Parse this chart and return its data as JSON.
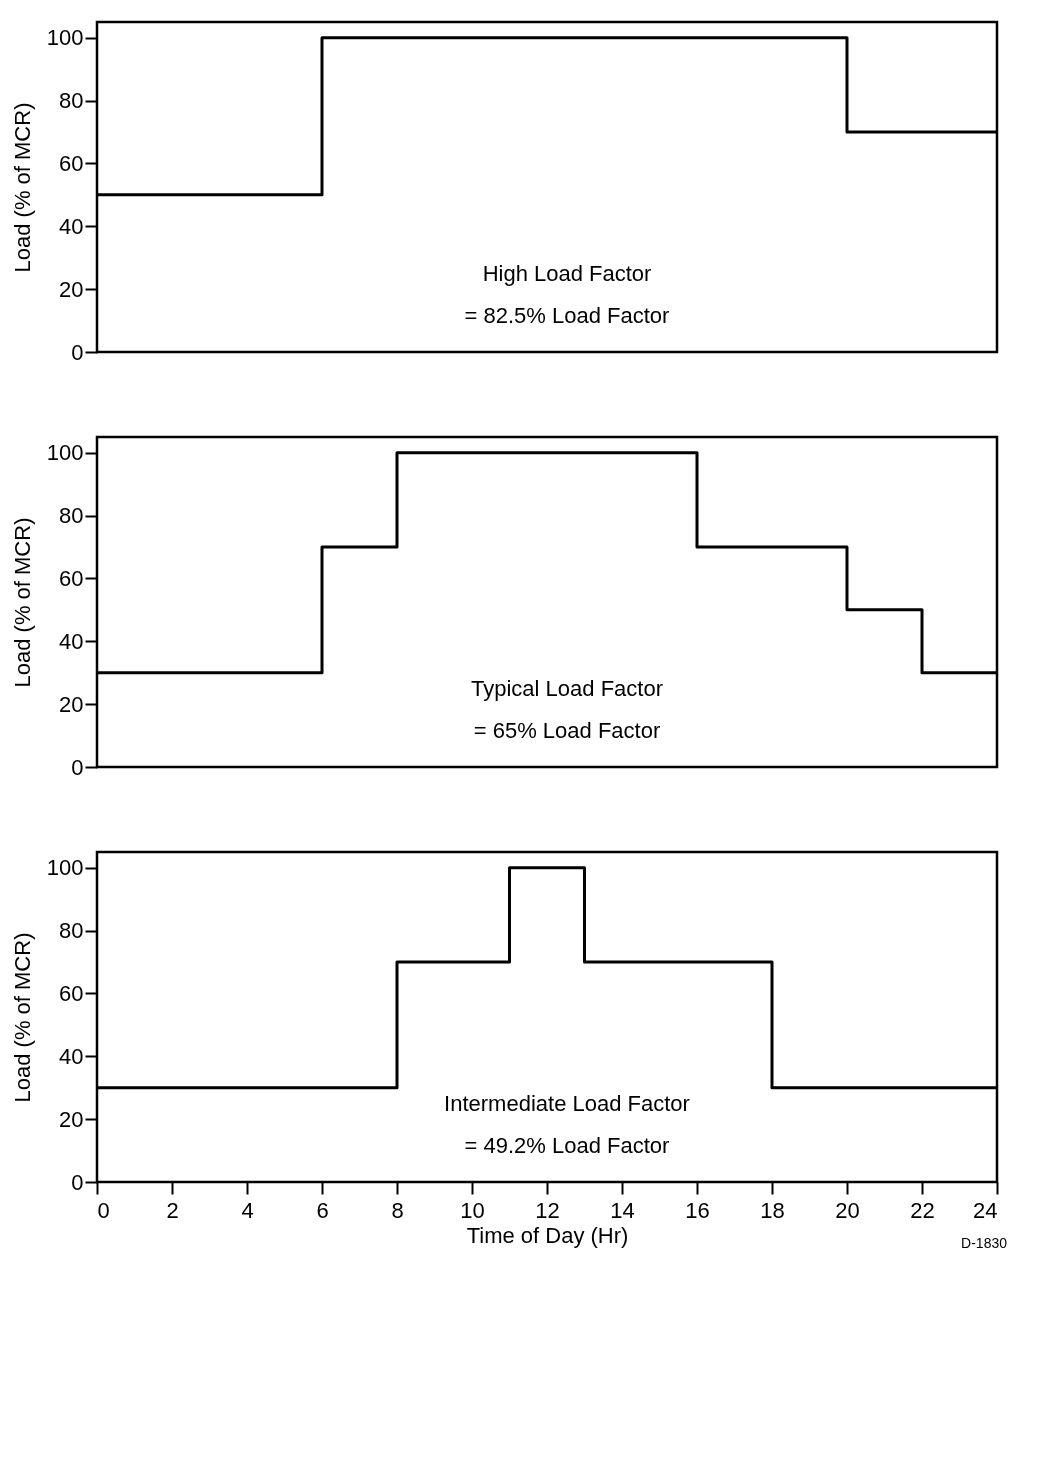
{
  "chart_data": [
    {
      "type": "step",
      "x": [
        0,
        6,
        20,
        24
      ],
      "series": [
        {
          "color": "#000000",
          "values": [
            50,
            100,
            70,
            70
          ]
        }
      ],
      "xlim": [
        0,
        24
      ],
      "ylim": [
        0,
        105
      ],
      "yticks": [
        0,
        20,
        40,
        60,
        80,
        100
      ],
      "ylabel": "Load (% of MCR)",
      "tick_labels": "y",
      "grid": false,
      "legend": false,
      "line_style": "solid",
      "marker": "none",
      "annotations": [
        "High Load Factor",
        "= 82.5% Load Factor"
      ]
    },
    {
      "type": "step",
      "x": [
        0,
        6,
        8,
        16,
        20,
        22,
        24
      ],
      "series": [
        {
          "color": "#000000",
          "values": [
            30,
            70,
            100,
            70,
            50,
            30,
            30
          ]
        }
      ],
      "xlim": [
        0,
        24
      ],
      "ylim": [
        0,
        105
      ],
      "yticks": [
        0,
        20,
        40,
        60,
        80,
        100
      ],
      "ylabel": "Load (% of MCR)",
      "tick_labels": "y",
      "grid": false,
      "legend": false,
      "line_style": "solid",
      "marker": "none",
      "annotations": [
        "Typical Load Factor",
        "= 65% Load Factor"
      ]
    },
    {
      "type": "step",
      "x": [
        0,
        8,
        11,
        13,
        18,
        24
      ],
      "series": [
        {
          "color": "#000000",
          "values": [
            30,
            70,
            100,
            70,
            30,
            30
          ]
        }
      ],
      "xlim": [
        0,
        24
      ],
      "ylim": [
        0,
        105
      ],
      "xticks": [
        0,
        2,
        4,
        6,
        8,
        10,
        12,
        14,
        16,
        18,
        20,
        22,
        24
      ],
      "yticks": [
        0,
        20,
        40,
        60,
        80,
        100
      ],
      "xlabel": "Time of Day (Hr)",
      "ylabel": "Load (% of MCR)",
      "grid": false,
      "legend": false,
      "line_style": "solid",
      "marker": "none",
      "annotations": [
        "Intermediate Load Factor",
        "= 49.2% Load Factor",
        "D-1830"
      ]
    }
  ]
}
